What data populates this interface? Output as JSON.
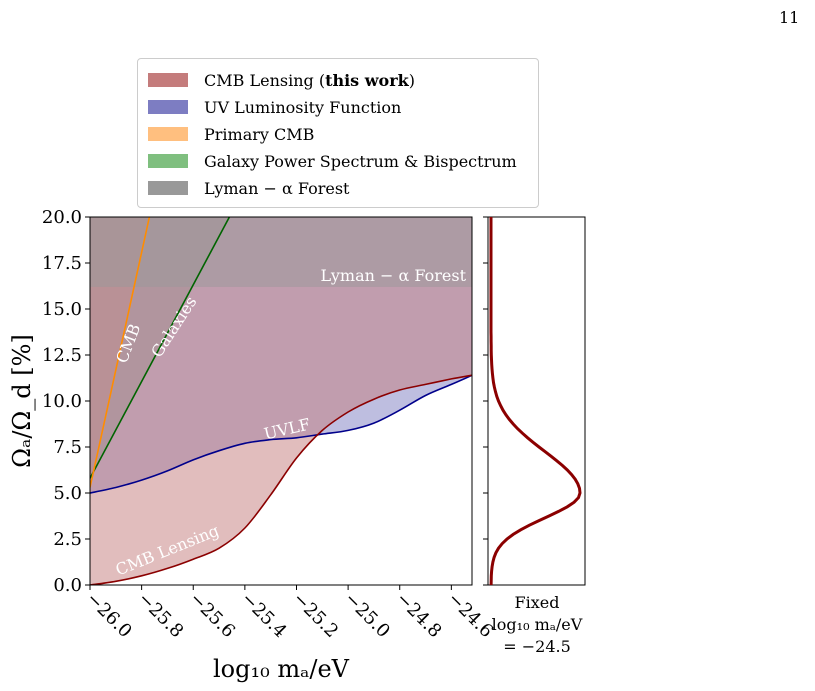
{
  "page_number": "11",
  "chart_data": {
    "type": "area",
    "xlabel": "log₁₀ mₐ/eV",
    "ylabel": "Ωₐ/Ω_d [%]",
    "xlim": [
      -26.0,
      -24.52
    ],
    "ylim": [
      0,
      20
    ],
    "x_ticks": [
      -26.0,
      -25.8,
      -25.6,
      -25.4,
      -25.2,
      -25.0,
      -24.8,
      -24.6
    ],
    "x_tick_labels": [
      "−26.0",
      "−25.8",
      "−25.6",
      "−25.4",
      "−25.2",
      "−25.0",
      "−24.8",
      "−24.6"
    ],
    "y_ticks": [
      0,
      2.5,
      5,
      7.5,
      10,
      12.5,
      15,
      17.5,
      20
    ],
    "y_tick_labels": [
      "0.0",
      "2.5",
      "5.0",
      "7.5",
      "10.0",
      "12.5",
      "15.0",
      "17.5",
      "20.0"
    ],
    "grid": false,
    "legend_placement": "top",
    "legend": [
      {
        "label": "CMB Lensing (",
        "bold": "this work",
        "suffix": ")",
        "color": "#c47c7c"
      },
      {
        "label": "UV Luminosity Function",
        "bold": "",
        "suffix": "",
        "color": "#7d7dc2"
      },
      {
        "label": "Primary CMB",
        "bold": "",
        "suffix": "",
        "color": "#ffbf7f"
      },
      {
        "label": "Galaxy Power Spectrum & Bispectrum",
        "bold": "",
        "suffix": "",
        "color": "#7fbf7f"
      },
      {
        "label": "Lyman − α Forest",
        "bold": "",
        "suffix": "",
        "color": "#999999"
      }
    ],
    "series": [
      {
        "name": "CMB Lensing",
        "color": "#8b0000",
        "x": [
          -26.0,
          -25.9,
          -25.8,
          -25.7,
          -25.6,
          -25.5,
          -25.4,
          -25.3,
          -25.2,
          -25.1,
          -25.0,
          -24.9,
          -24.8,
          -24.7,
          -24.6,
          -24.52
        ],
        "y": [
          0.0,
          0.2,
          0.5,
          0.9,
          1.4,
          2.0,
          3.1,
          4.9,
          6.9,
          8.4,
          9.4,
          10.1,
          10.6,
          10.9,
          11.2,
          11.4
        ]
      },
      {
        "name": "UVLF",
        "color": "#00008b",
        "x": [
          -26.0,
          -25.9,
          -25.8,
          -25.7,
          -25.6,
          -25.5,
          -25.4,
          -25.3,
          -25.2,
          -25.1,
          -25.0,
          -24.9,
          -24.8,
          -24.7,
          -24.6,
          -24.52
        ],
        "y": [
          5.0,
          5.3,
          5.7,
          6.2,
          6.8,
          7.3,
          7.7,
          7.9,
          8.0,
          8.2,
          8.4,
          8.8,
          9.5,
          10.3,
          10.9,
          11.4
        ]
      },
      {
        "name": "Primary CMB",
        "color": "#ff8c00",
        "x": [
          -26.0,
          -25.77
        ],
        "y": [
          5.3,
          20.0
        ]
      },
      {
        "name": "Galaxies",
        "color": "#006400",
        "x": [
          -26.0,
          -25.46
        ],
        "y": [
          5.8,
          20.0
        ]
      },
      {
        "name": "Lyman − α Forest",
        "color": "#999999",
        "x": [
          -26.0,
          -24.52
        ],
        "y": [
          16.2,
          16.2
        ]
      }
    ],
    "annotations": [
      {
        "text": "Lyman − α Forest"
      },
      {
        "text": "CMB"
      },
      {
        "text": "Galaxies"
      },
      {
        "text": "UVLF"
      },
      {
        "text": "CMB Lensing"
      }
    ],
    "side_panel": {
      "type": "line",
      "color": "#8b0000",
      "peak_y": 5.0,
      "width": 1.8,
      "label_line1": "Fixed",
      "label_line2": "log₁₀ mₐ/eV",
      "label_line3": "= −24.5"
    }
  }
}
